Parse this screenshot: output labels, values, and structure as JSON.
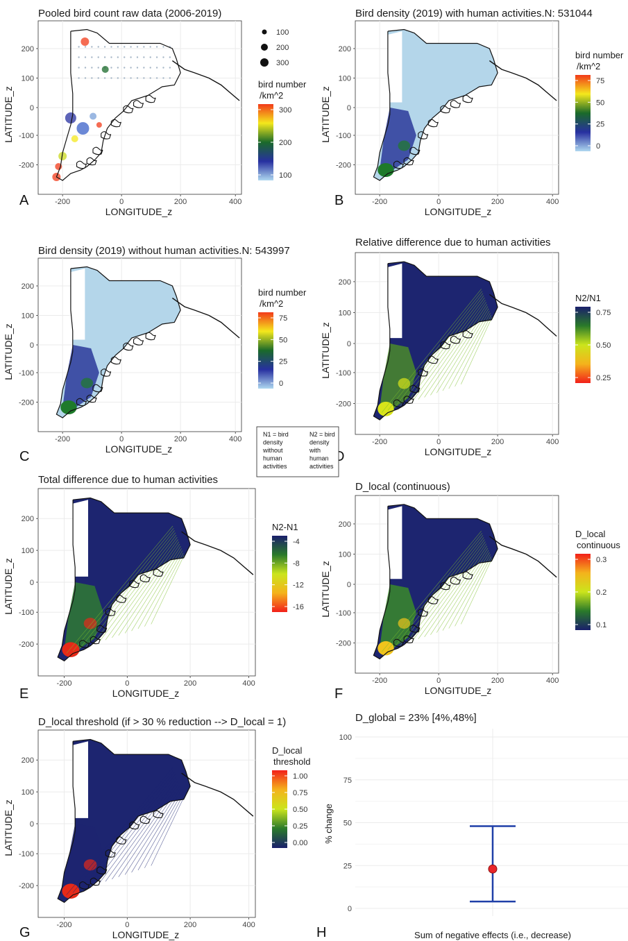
{
  "chart_data": [
    {
      "panel": "A",
      "type": "map",
      "title": "Pooled bird count raw data (2006-2019)",
      "xlabel": "LONGITUDE_z",
      "ylabel": "LATITUDE_z",
      "xticks": [
        "-200",
        "0",
        "200",
        "400"
      ],
      "yticks": [
        "200",
        "100",
        "0",
        "-100",
        "-200"
      ],
      "size_legend": {
        "title": "",
        "labels": [
          "100",
          "200",
          "300"
        ]
      },
      "color_legend": {
        "title_line1": "bird number",
        "title_line2": "/km^2",
        "labels": [
          "300",
          "200",
          "100"
        ],
        "scale": "turbo"
      }
    },
    {
      "panel": "B",
      "type": "map",
      "title": "Bird density (2019) with human activities.N: 531044",
      "xlabel": "LONGITUDE_z",
      "ylabel": "LATITUDE_z",
      "xticks": [
        "-200",
        "0",
        "200",
        "400"
      ],
      "yticks": [
        "200",
        "100",
        "0",
        "-100",
        "-200"
      ],
      "color_legend": {
        "title_line1": "bird number",
        "title_line2": "/km^2",
        "labels": [
          "75",
          "50",
          "25",
          "0"
        ],
        "scale": "turbo"
      }
    },
    {
      "panel": "C",
      "type": "map",
      "title": "Bird density (2019) without human activities.N: 543997",
      "xlabel": "LONGITUDE_z",
      "ylabel": "LATITUDE_z",
      "xticks": [
        "-200",
        "0",
        "200",
        "400"
      ],
      "yticks": [
        "200",
        "100",
        "0",
        "-100",
        "-200"
      ],
      "color_legend": {
        "title_line1": "bird number",
        "title_line2": "/km^2",
        "labels": [
          "75",
          "50",
          "25",
          "0"
        ],
        "scale": "turbo"
      }
    },
    {
      "panel": "D",
      "type": "map",
      "title": "Relative difference due to human activities",
      "xlabel": "LONGITUDE_z",
      "ylabel": "LATITUDE_z",
      "xticks": [
        "-200",
        "0",
        "200",
        "400"
      ],
      "yticks": [
        "200",
        "100",
        "0",
        "-100",
        "-200"
      ],
      "color_legend": {
        "title_line1": "N2/N1",
        "title_line2": "",
        "labels": [
          "0.75",
          "0.50",
          "0.25"
        ],
        "scale": "diverge_rev"
      }
    },
    {
      "panel": "E",
      "type": "map",
      "title": "Total difference due to human activities",
      "xlabel": "LONGITUDE_z",
      "ylabel": "LATITUDE_z",
      "xticks": [
        "-200",
        "0",
        "200",
        "400"
      ],
      "yticks": [
        "200",
        "100",
        "0",
        "-100",
        "-200"
      ],
      "color_legend": {
        "title_line1": "N2-N1",
        "title_line2": "",
        "labels": [
          "-4",
          "-8",
          "-12",
          "-16"
        ],
        "scale": "diverge_rev"
      }
    },
    {
      "panel": "F",
      "type": "map",
      "title": "D_local (continuous)",
      "xlabel": "LONGITUDE_z",
      "ylabel": "LATITUDE_z",
      "xticks": [
        "-200",
        "0",
        "200",
        "400"
      ],
      "yticks": [
        "200",
        "100",
        "0",
        "-100",
        "-200"
      ],
      "color_legend": {
        "title_line1": "D_local",
        "title_line2": " continuous",
        "labels": [
          "0.3",
          "0.2",
          "0.1"
        ],
        "scale": "diverge"
      }
    },
    {
      "panel": "G",
      "type": "map",
      "title": "D_local threshold (if > 30 % reduction --> D_local = 1)",
      "xlabel": "LONGITUDE_z",
      "ylabel": "LATITUDE_z",
      "xticks": [
        "-200",
        "0",
        "200",
        "400"
      ],
      "yticks": [
        "200",
        "100",
        "0",
        "-100",
        "-200"
      ],
      "color_legend": {
        "title_line1": "D_local",
        "title_line2": " threshold",
        "labels": [
          "1.00",
          "0.75",
          "0.50",
          "0.25",
          "0.00"
        ],
        "scale": "diverge"
      }
    },
    {
      "panel": "H",
      "type": "scatter",
      "title": "D_global = 23% [4%,48%]",
      "xlabel": "Sum of negative effects (i.e., decrease)",
      "ylabel": "% change",
      "ylim": [
        0,
        100
      ],
      "yticks": [
        "100",
        "75",
        "50",
        "25",
        "0"
      ],
      "points": [
        {
          "y": 23,
          "ymin": 4,
          "ymax": 48
        }
      ]
    }
  ],
  "note": {
    "n1": [
      "N1 = bird",
      "density",
      "without",
      "human",
      "activities"
    ],
    "n2": [
      "N2 = bird",
      "density",
      "with",
      "human",
      "activities"
    ]
  },
  "colors": {
    "panel_bg": "#ffffff",
    "grid": "#ebebeb",
    "errorbar": "#1f3fa8",
    "point": "#e8262b",
    "turbo": [
      "#aed7f0",
      "#2730a0",
      "#1a6a2a",
      "#f4e81c",
      "#f23b1a"
    ],
    "diverge": [
      "#1a1f6b",
      "#2a7a2a",
      "#cbe51c",
      "#f4b31c",
      "#f2201a"
    ]
  }
}
